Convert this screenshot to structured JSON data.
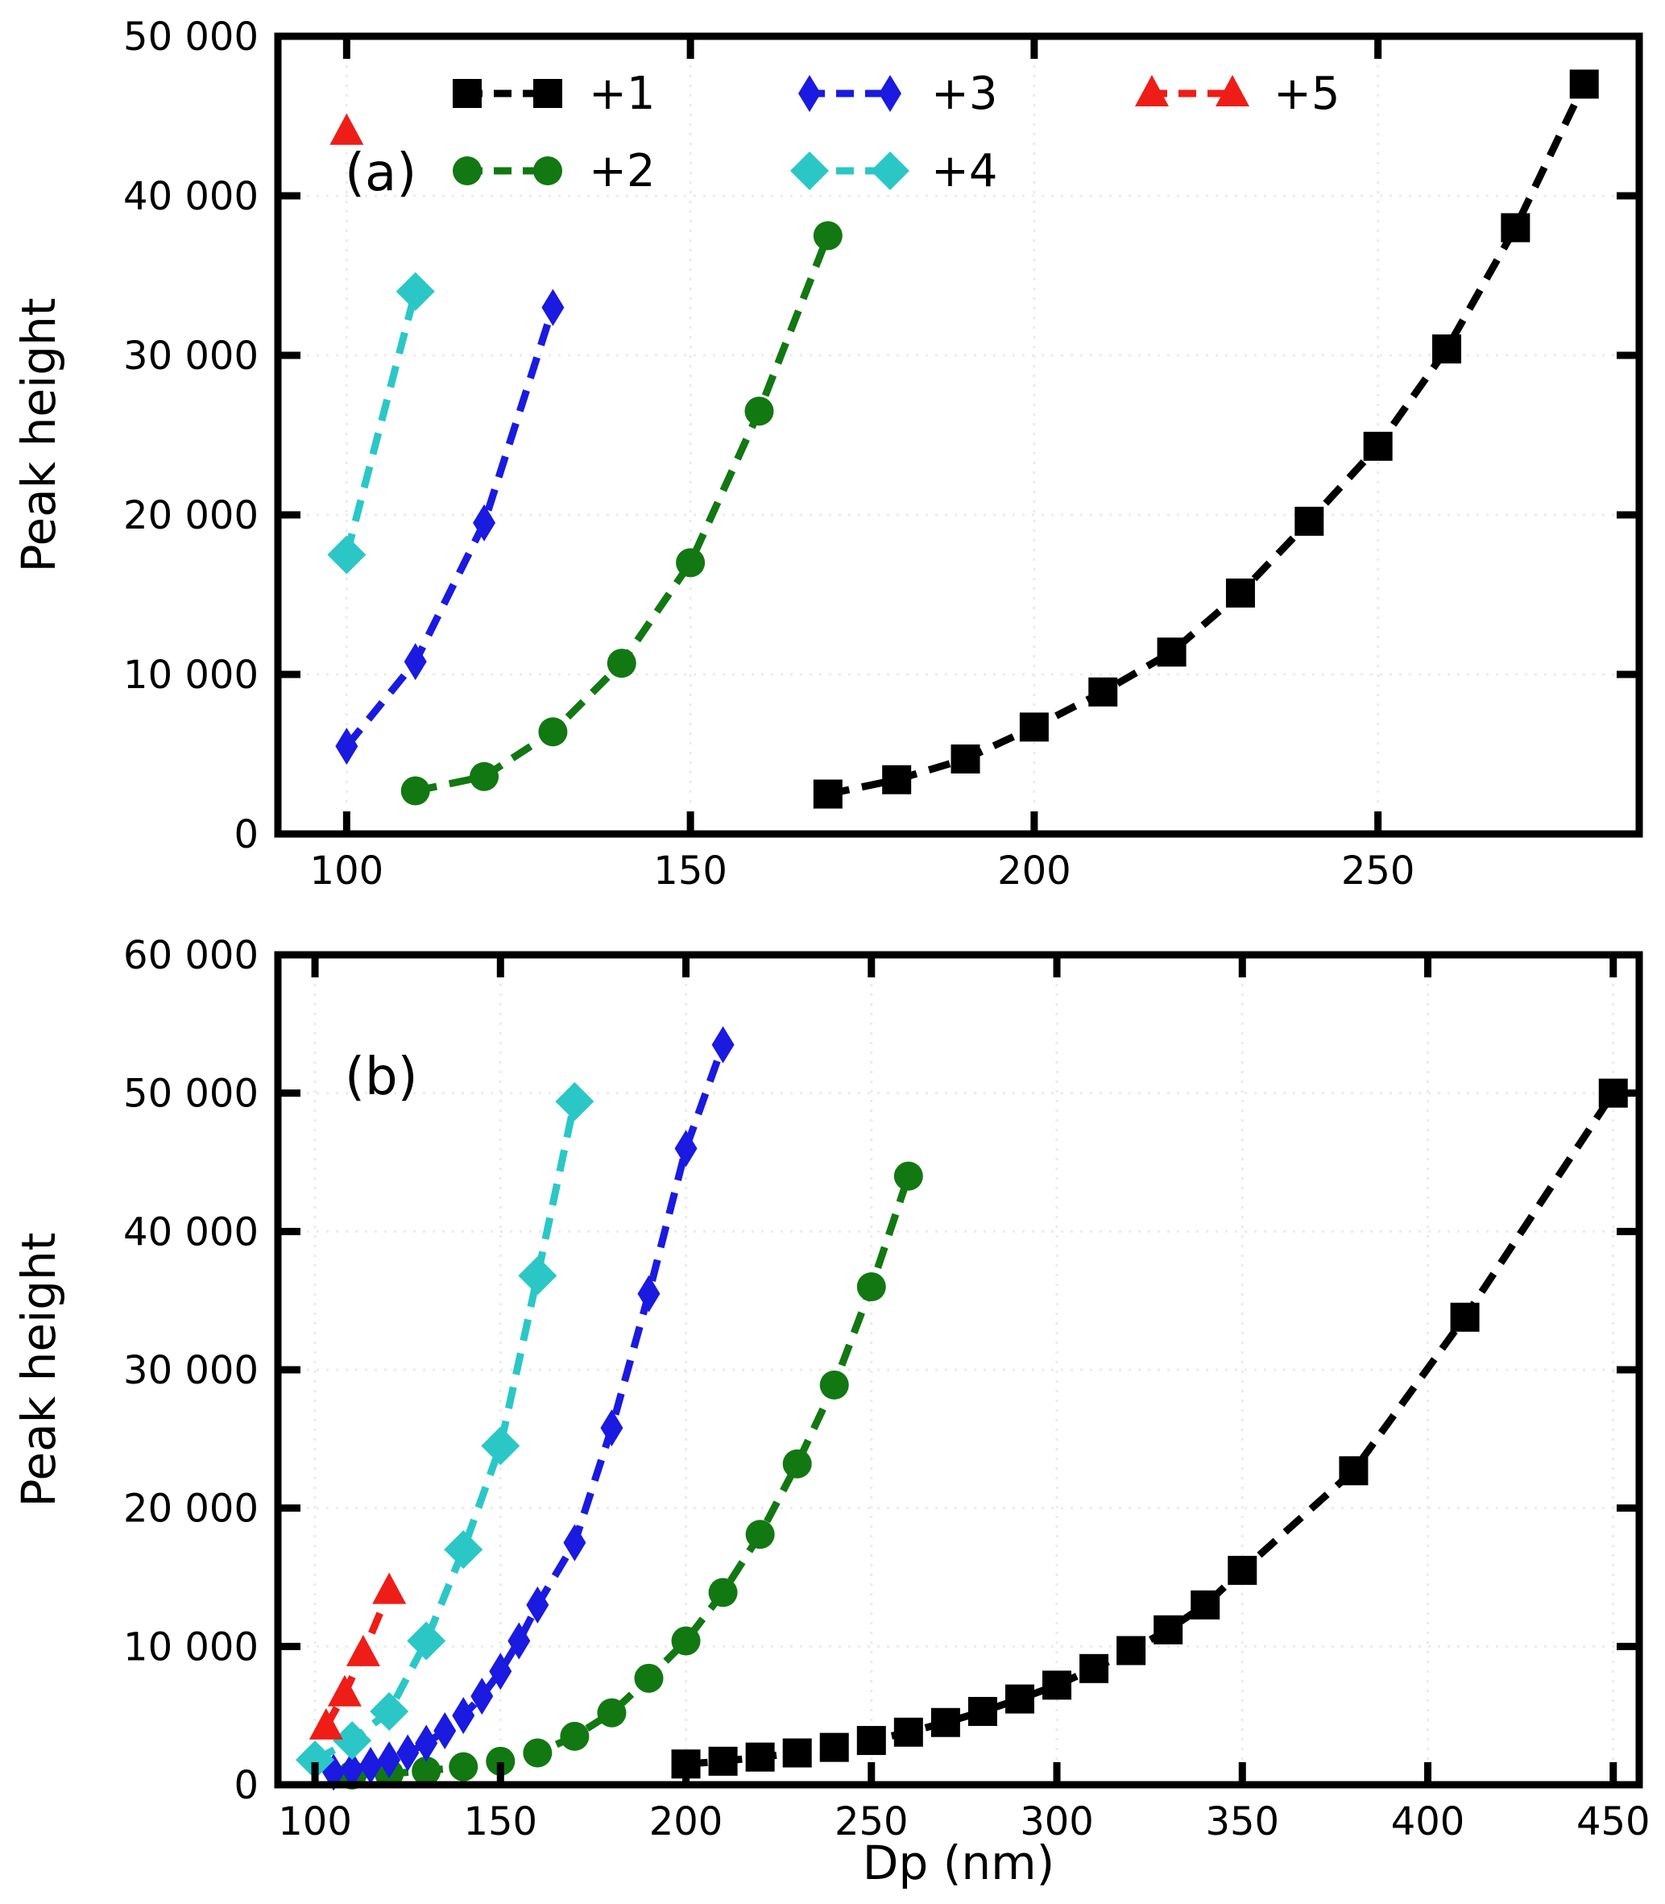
{
  "figure": {
    "xlabel": "Dp (nm)",
    "ylabel": "Peak height",
    "background": "#ffffff",
    "axis_color": "#000000",
    "grid_color": "#ebebeb"
  },
  "legend": {
    "position": "upper area of panel (a), 3 columns, no frame",
    "entries": [
      {
        "label": "+1",
        "marker": "square",
        "color": "#000000"
      },
      {
        "label": "+2",
        "marker": "circle",
        "color": "#127812"
      },
      {
        "label": "+3",
        "marker": "thin-diamond",
        "color": "#1a1ae0"
      },
      {
        "label": "+4",
        "marker": "diamond",
        "color": "#2bc7c7"
      },
      {
        "label": "+5",
        "marker": "triangle-up",
        "color": "#ee1d18"
      }
    ]
  },
  "chart_data": [
    {
      "type": "line",
      "panel_label": "(a)",
      "xlabel": "Dp (nm)",
      "ylabel": "Peak height",
      "line_style": "dashed",
      "grid": "faint dashed",
      "xlim": [
        90,
        288
      ],
      "ylim": [
        0,
        50000
      ],
      "xticks": [
        100,
        150,
        200,
        250
      ],
      "yticks": [
        0,
        10000,
        20000,
        30000,
        40000,
        50000
      ],
      "series": [
        {
          "name": "+1",
          "marker": "square",
          "color": "#000000",
          "x": [
            170,
            180,
            190,
            200,
            210,
            220,
            230,
            240,
            250,
            260,
            270,
            280
          ],
          "y": [
            2500,
            3400,
            4700,
            6700,
            8900,
            11400,
            15100,
            19600,
            24300,
            30400,
            38000,
            47000
          ]
        },
        {
          "name": "+2",
          "marker": "circle",
          "color": "#127812",
          "x": [
            110,
            120,
            130,
            140,
            150,
            160,
            170
          ],
          "y": [
            2700,
            3600,
            6400,
            10700,
            17000,
            26500,
            37500
          ]
        },
        {
          "name": "+3",
          "marker": "thin-diamond",
          "color": "#1a1ae0",
          "x": [
            100,
            110,
            120,
            130
          ],
          "y": [
            5500,
            10800,
            19500,
            33000
          ]
        },
        {
          "name": "+4",
          "marker": "diamond",
          "color": "#2bc7c7",
          "x": [
            100,
            110
          ],
          "y": [
            17500,
            34000
          ]
        },
        {
          "name": "+5",
          "marker": "triangle-up",
          "color": "#ee1d18",
          "x": [
            100
          ],
          "y": [
            44000
          ]
        }
      ]
    },
    {
      "type": "line",
      "panel_label": "(b)",
      "xlabel": "Dp (nm)",
      "ylabel": "Peak height",
      "line_style": "dashed",
      "grid": "faint dashed",
      "xlim": [
        90,
        457
      ],
      "ylim": [
        0,
        60000
      ],
      "xticks": [
        100,
        150,
        200,
        250,
        300,
        350,
        400,
        450
      ],
      "yticks": [
        0,
        10000,
        20000,
        30000,
        40000,
        50000,
        60000
      ],
      "series": [
        {
          "name": "+1",
          "marker": "square",
          "color": "#000000",
          "x": [
            200,
            210,
            220,
            230,
            240,
            250,
            260,
            270,
            280,
            290,
            300,
            310,
            320,
            330,
            340,
            350,
            380,
            410,
            450
          ],
          "y": [
            1500,
            1700,
            2000,
            2300,
            2700,
            3200,
            3800,
            4500,
            5300,
            6200,
            7200,
            8400,
            9700,
            11200,
            13000,
            15500,
            22700,
            33800,
            50000
          ]
        },
        {
          "name": "+2",
          "marker": "circle",
          "color": "#127812",
          "x": [
            110,
            120,
            130,
            140,
            150,
            160,
            170,
            180,
            190,
            200,
            210,
            220,
            230,
            240,
            250,
            260
          ],
          "y": [
            700,
            800,
            1000,
            1300,
            1700,
            2300,
            3500,
            5200,
            7700,
            10400,
            13900,
            18100,
            23200,
            28900,
            36000,
            44000
          ]
        },
        {
          "name": "+3",
          "marker": "thin-diamond",
          "color": "#1a1ae0",
          "x": [
            105,
            110,
            115,
            120,
            125,
            130,
            135,
            140,
            145,
            150,
            155,
            160,
            170,
            180,
            190,
            200,
            210
          ],
          "y": [
            900,
            1100,
            1400,
            1800,
            2300,
            3000,
            3900,
            5000,
            6400,
            8200,
            10400,
            13000,
            17500,
            25800,
            35500,
            46000,
            53500
          ]
        },
        {
          "name": "+4",
          "marker": "diamond",
          "color": "#2bc7c7",
          "x": [
            100,
            110,
            120,
            130,
            140,
            150,
            160,
            170
          ],
          "y": [
            1800,
            3200,
            5300,
            10400,
            17000,
            24500,
            36800,
            49400
          ]
        },
        {
          "name": "+5",
          "marker": "triangle-up",
          "color": "#ee1d18",
          "x": [
            103,
            108,
            113,
            120
          ],
          "y": [
            4200,
            6600,
            9500,
            14000
          ]
        }
      ]
    }
  ]
}
